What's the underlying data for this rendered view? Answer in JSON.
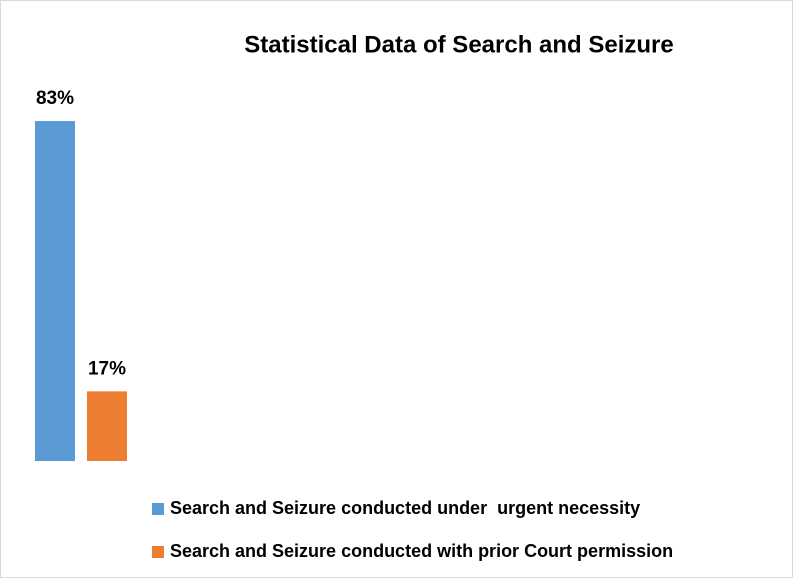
{
  "chart_data": {
    "type": "bar",
    "title": "Statistical Data of Search and Seizure",
    "categories": [
      null
    ],
    "series": [
      {
        "name": "Search and Seizure conducted under  urgent necessity",
        "color": "#5b9bd5",
        "values": [
          83
        ],
        "value_labels": [
          "83%"
        ]
      },
      {
        "name": "Search and Seizure conducted with prior Court permission",
        "color": "#ed7d31",
        "values": [
          17
        ],
        "value_labels": [
          "17%"
        ]
      }
    ],
    "legend": "bottom"
  }
}
